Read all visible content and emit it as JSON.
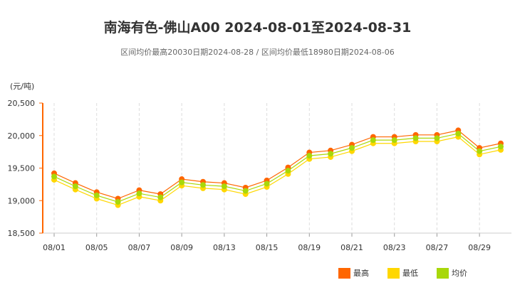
{
  "chart_data": {
    "type": "line",
    "title": "南海有色-佛山A00 2024-08-01至2024-08-31",
    "subtitle": "区间均价最高20030日期2024-08-28 / 区间均价最低18980日期2024-08-06",
    "ylabel": "(元/吨)",
    "ylim": [
      18500,
      20500
    ],
    "yticks": [
      "18,500",
      "19,000",
      "19,500",
      "20,000",
      "20,500"
    ],
    "ytick_values": [
      18500,
      19000,
      19500,
      20000,
      20500
    ],
    "x": [
      "08/01",
      "08/02",
      "08/05",
      "08/06",
      "08/07",
      "08/08",
      "08/09",
      "08/12",
      "08/13",
      "08/14",
      "08/15",
      "08/16",
      "08/19",
      "08/20",
      "08/21",
      "08/22",
      "08/23",
      "08/26",
      "08/27",
      "08/28",
      "08/29",
      "08/30"
    ],
    "xtick_labels": [
      "08/01",
      "08/05",
      "08/07",
      "08/09",
      "08/13",
      "08/15",
      "08/19",
      "08/21",
      "08/23",
      "08/27",
      "08/29"
    ],
    "grid": "vertical dashed",
    "legend_position": "bottom-right",
    "series": [
      {
        "name": "最高",
        "color": "#ff6600",
        "values": [
          19420,
          19270,
          19130,
          19030,
          19160,
          19100,
          19330,
          19290,
          19270,
          19200,
          19310,
          19510,
          19740,
          19770,
          19860,
          19980,
          19980,
          20010,
          20010,
          20080,
          19810,
          19880
        ]
      },
      {
        "name": "最低",
        "color": "#ffd700",
        "values": [
          19320,
          19170,
          19030,
          18930,
          19060,
          19000,
          19230,
          19190,
          19170,
          19100,
          19210,
          19410,
          19640,
          19670,
          19760,
          19880,
          19880,
          19910,
          19910,
          19980,
          19710,
          19780
        ]
      },
      {
        "name": "均价",
        "color": "#a8d80a",
        "values": [
          19370,
          19220,
          19080,
          18980,
          19110,
          19050,
          19280,
          19240,
          19220,
          19150,
          19260,
          19460,
          19690,
          19720,
          19810,
          19930,
          19930,
          19960,
          19960,
          20030,
          19760,
          19830
        ]
      }
    ]
  }
}
